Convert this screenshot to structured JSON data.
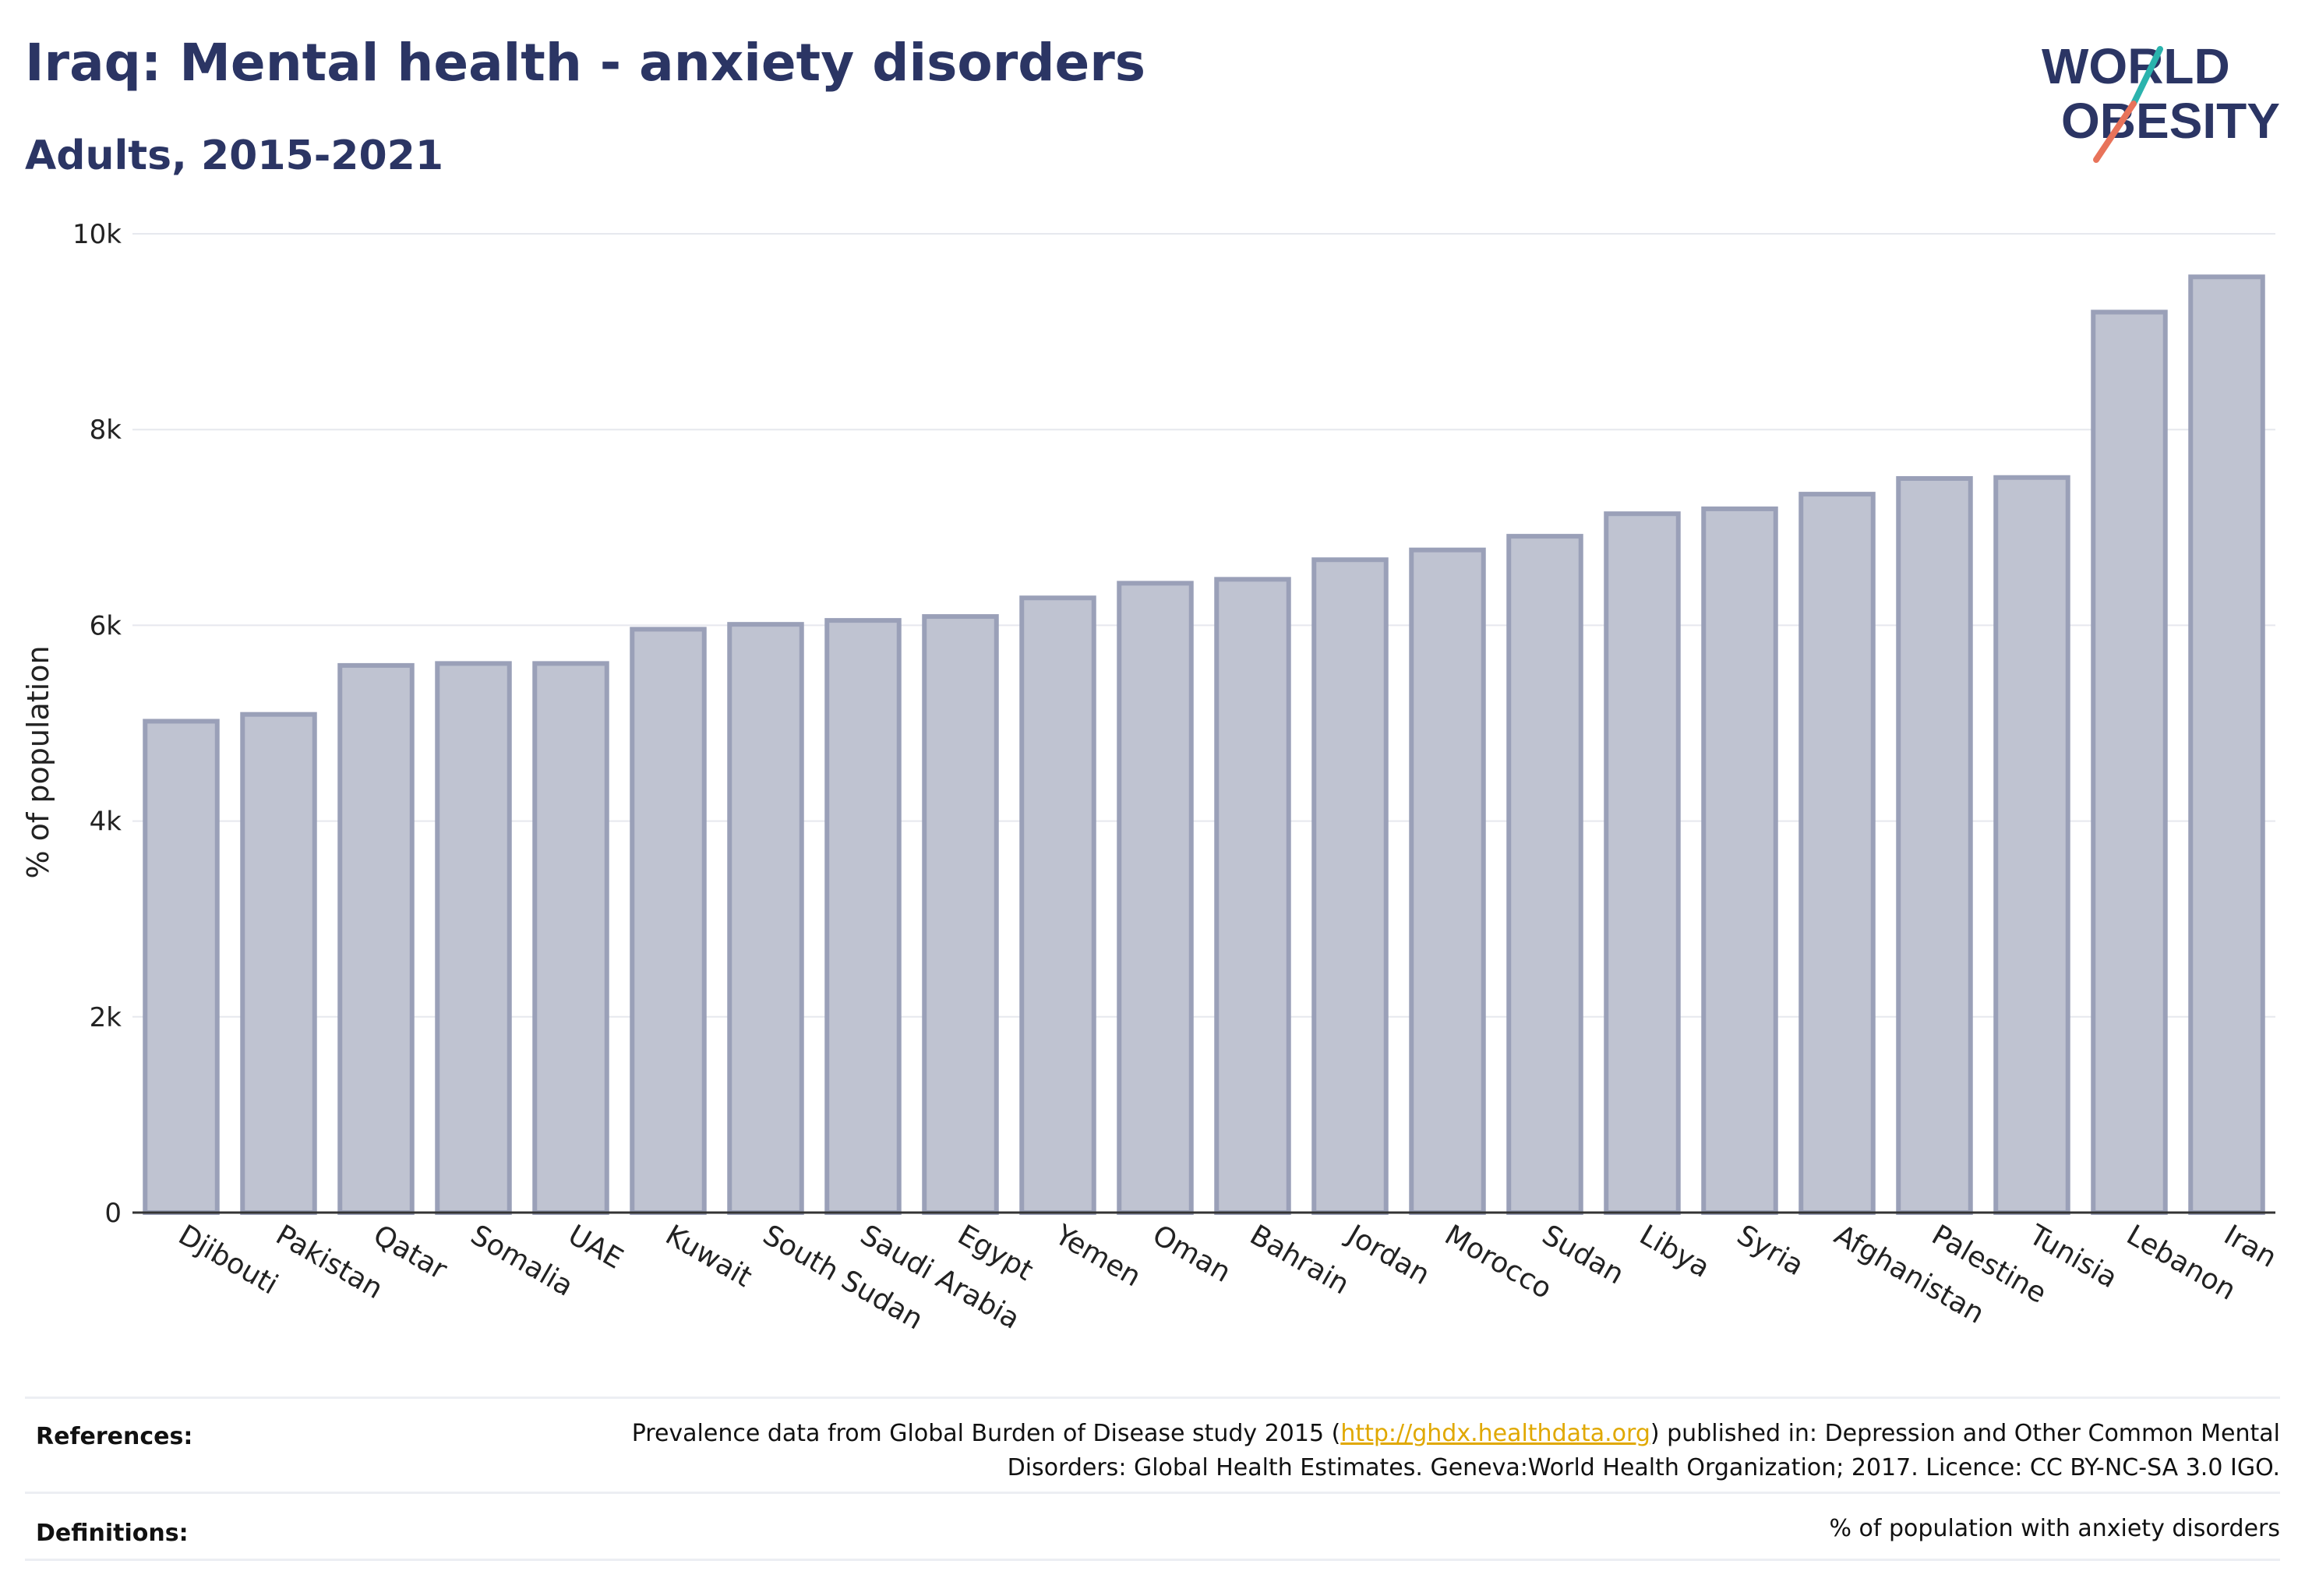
{
  "header": {
    "title": "Iraq: Mental health - anxiety disorders",
    "subtitle": "Adults, 2015-2021"
  },
  "logo": {
    "line1": "WORLD",
    "line2": "OBESITY",
    "text_color": "#2b3564",
    "accent_teal": "#2bb3ad",
    "accent_coral": "#e8735a"
  },
  "chart_data": {
    "type": "bar",
    "ylabel": "% of population",
    "xlabel": "",
    "ylim": [
      0,
      10000
    ],
    "yticks": [
      0,
      2000,
      4000,
      6000,
      8000,
      10000
    ],
    "ytick_labels": [
      "0",
      "2k",
      "4k",
      "6k",
      "8k",
      "10k"
    ],
    "grid": true,
    "bar_fill": "#bfc3d1",
    "bar_stroke": "#9aa0b8",
    "categories": [
      "Djibouti",
      "Pakistan",
      "Qatar",
      "Somalia",
      "UAE",
      "Kuwait",
      "South Sudan",
      "Saudi Arabia",
      "Egypt",
      "Yemen",
      "Oman",
      "Bahrain",
      "Jordan",
      "Morocco",
      "Sudan",
      "Libya",
      "Syria",
      "Afghanistan",
      "Palestine",
      "Tunisia",
      "Lebanon",
      "Iran"
    ],
    "values": [
      5020,
      5090,
      5590,
      5610,
      5610,
      5960,
      6010,
      6050,
      6090,
      6280,
      6430,
      6470,
      6670,
      6770,
      6910,
      7140,
      7190,
      7340,
      7500,
      7510,
      9200,
      9560
    ]
  },
  "footer": {
    "references_label": "References:",
    "references_text_before": "Prevalence data from Global Burden of Disease study 2015 (",
    "references_link": "http://ghdx.healthdata.org",
    "references_text_after": ") published in: Depression and Other Common Mental Disorders: Global Health Estimates. Geneva:World Health Organization; 2017. Licence: CC BY-NC-SA 3.0 IGO.",
    "definitions_label": "Definitions:",
    "definitions_text": "% of population with anxiety disorders"
  }
}
